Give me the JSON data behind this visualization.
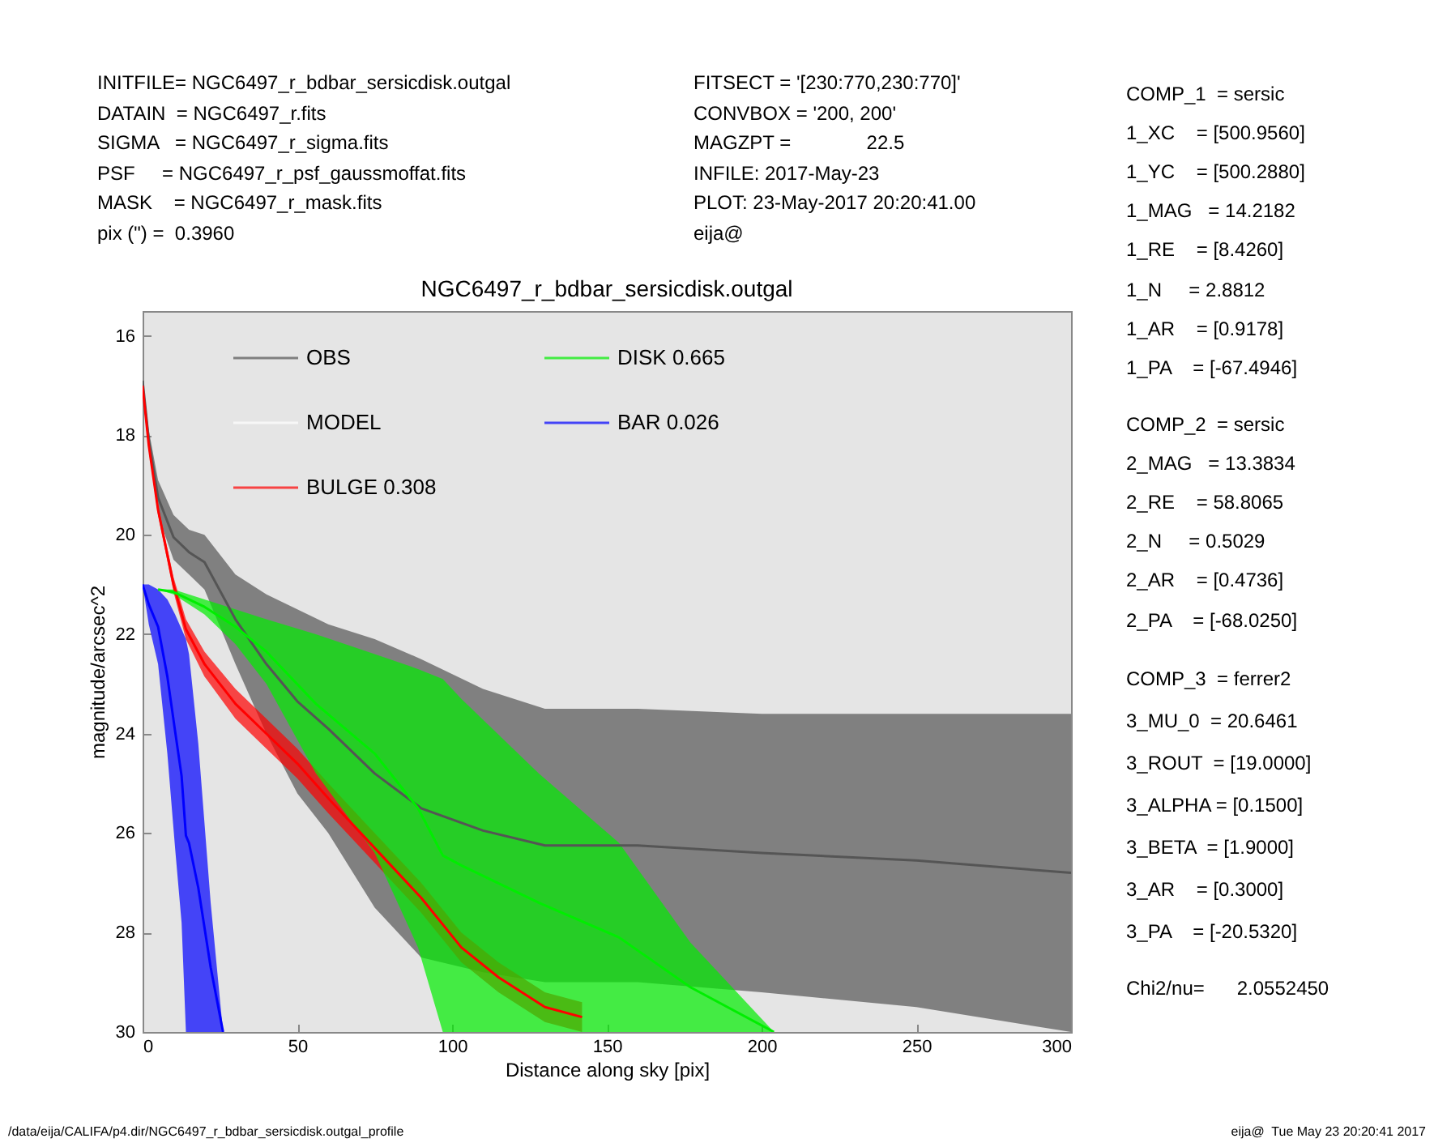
{
  "chart_data": {
    "type": "line",
    "title": "NGC6497_r_bdbar_sersicdisk.outgal",
    "xlabel": "Distance along sky [pix]",
    "ylabel": "magnitude/arcsec^2",
    "xlim": [
      0,
      300
    ],
    "xticks": [
      0,
      50,
      100,
      150,
      200,
      250,
      300
    ],
    "ylim": [
      30,
      15.5
    ],
    "yticks": [
      16,
      18,
      20,
      22,
      24,
      26,
      28,
      30
    ],
    "grid": false,
    "legend": "top left",
    "marker": "none",
    "line_style": "solid",
    "series": [
      {
        "name": "OBS",
        "color": "#555555",
        "x": [
          0,
          2,
          5,
          10,
          15,
          20,
          30,
          40,
          50,
          60,
          75,
          90,
          110,
          130,
          160,
          200,
          250,
          300
        ],
        "values": [
          16.9,
          18.1,
          19.25,
          20.05,
          20.35,
          20.55,
          21.7,
          22.6,
          23.35,
          23.9,
          24.8,
          25.5,
          25.95,
          26.25,
          26.25,
          26.4,
          26.55,
          26.8
        ],
        "lower": [
          16.9,
          17.9,
          18.9,
          19.6,
          19.9,
          20.0,
          20.8,
          21.2,
          21.5,
          21.8,
          22.1,
          22.5,
          23.1,
          23.5,
          23.5,
          23.6,
          23.6,
          23.6
        ],
        "upper": [
          16.9,
          18.3,
          19.6,
          20.5,
          20.8,
          21.1,
          22.6,
          24.0,
          25.2,
          26.0,
          27.5,
          28.5,
          28.8,
          29.0,
          29.0,
          29.2,
          29.5,
          30
        ]
      },
      {
        "name": "MODEL",
        "color": "#ffffff"
      },
      {
        "name": "BULGE  0.308",
        "color": "#ff0000",
        "x": [
          0,
          2,
          5,
          10,
          14,
          20,
          30,
          40,
          50,
          60,
          75,
          90,
          103,
          115,
          130,
          142
        ],
        "values": [
          17.0,
          18.2,
          19.5,
          21.0,
          21.9,
          22.6,
          23.4,
          24.0,
          24.6,
          25.3,
          26.3,
          27.3,
          28.3,
          28.9,
          29.5,
          29.7
        ],
        "lower": [
          17.0,
          18.15,
          19.4,
          20.85,
          21.7,
          22.35,
          23.1,
          23.7,
          24.3,
          25.0,
          26.0,
          27.0,
          28.0,
          28.6,
          29.2,
          29.4
        ],
        "upper": [
          17.0,
          18.25,
          19.6,
          21.15,
          22.1,
          22.85,
          23.7,
          24.3,
          24.9,
          25.6,
          26.6,
          27.6,
          28.6,
          29.2,
          29.8,
          30
        ]
      },
      {
        "name": "DISK  0.665",
        "color": "#00ee00",
        "x": [
          5,
          10,
          20,
          30,
          40,
          56,
          75,
          89,
          97,
          103,
          128,
          154,
          177,
          204
        ],
        "values": [
          21.1,
          21.15,
          21.45,
          21.85,
          22.35,
          23.4,
          24.4,
          25.5,
          26.45,
          26.65,
          27.4,
          28.1,
          29.1,
          30
        ],
        "lower": [
          21.1,
          21.1,
          21.3,
          21.5,
          21.7,
          22.0,
          22.4,
          22.7,
          22.9,
          23.3,
          24.8,
          26.2,
          28.2,
          30
        ],
        "upper": [
          21.1,
          21.2,
          21.6,
          22.2,
          23.0,
          24.8,
          26.4,
          28.3,
          30,
          30,
          30,
          30,
          30,
          30
        ]
      },
      {
        "name": "BAR  0.026",
        "color": "#0000ff",
        "x": [
          0,
          2,
          5,
          8,
          10.5,
          12.6,
          14,
          15,
          18,
          22,
          26
        ],
        "values": [
          21.0,
          21.4,
          21.85,
          22.85,
          23.95,
          24.85,
          26.05,
          26.2,
          27.1,
          28.7,
          30
        ],
        "lower": [
          21.0,
          21.0,
          21.1,
          21.3,
          21.6,
          21.9,
          22.1,
          22.4,
          24.2,
          27.4,
          30
        ],
        "upper": [
          21.0,
          21.8,
          22.6,
          24.4,
          26.3,
          27.8,
          30,
          30,
          30,
          30,
          30
        ]
      }
    ],
    "annotations": [
      "INITFILE= NGC6497_r_bdbar_sersicdisk.outgal",
      "DATAIN  = NGC6497_r.fits",
      "SIGMA   = NGC6497_r_sigma.fits",
      "PSF     = NGC6497_r_psf_gaussmoffat.fits",
      "MASK    = NGC6497_r_mask.fits",
      "pix (\") =  0.3960",
      "FITSECT = '[230:770,230:770]'",
      "CONVBOX = '200, 200'",
      "MAGZPT =              22.5",
      "INFILE: 2017-May-23",
      "PLOT: 23-May-2017 20:20:41.00",
      "eija@",
      "COMP_1  = sersic",
      "1_XC    = [500.9560]",
      "1_YC    = [500.2880]",
      "1_MAG   = 14.2182",
      "1_RE    = [8.4260]",
      "1_N     = 2.8812",
      "1_AR    = [0.9178]",
      "1_PA    = [-67.4946]",
      "COMP_2  = sersic",
      "2_MAG   = 13.3834",
      "2_RE    = 58.8065",
      "2_N     = 0.5029",
      "2_AR    = [0.4736]",
      "2_PA    = [-68.0250]",
      "COMP_3  = ferrer2",
      "3_MU_0  = 20.6461",
      "3_ROUT  = [19.0000]",
      "3_ALPHA = [0.1500]",
      "3_BETA  = [1.9000]",
      "3_AR    = [0.3000]",
      "3_PA    = [-20.5320]",
      "Chi2/nu=      2.0552450",
      "/data/eija/CALIFA/p4.dir/NGC6497_r_bdbar_sersicdisk.outgal_profile",
      "eija@  Tue May 23 20:20:41 2017"
    ]
  }
}
